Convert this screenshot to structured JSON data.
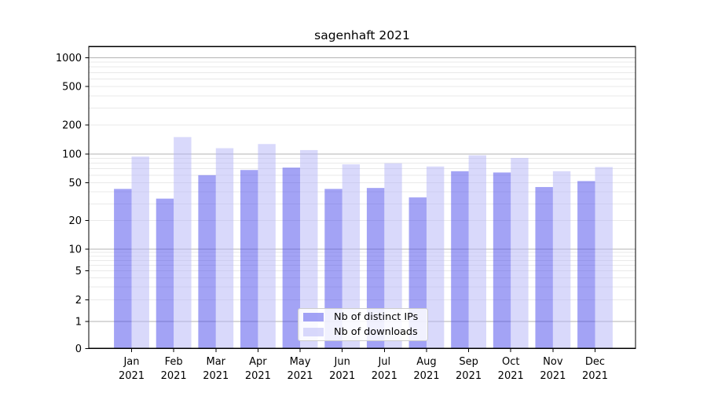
{
  "title": "sagenhaft 2021",
  "chart_data": {
    "type": "bar",
    "title": "sagenhaft 2021",
    "x": {
      "months": [
        "Jan",
        "Feb",
        "Mar",
        "Apr",
        "May",
        "Jun",
        "Jul",
        "Aug",
        "Sep",
        "Oct",
        "Nov",
        "Dec"
      ],
      "year": "2021"
    },
    "categories": [
      "Jan 2021",
      "Feb 2021",
      "Mar 2021",
      "Apr 2021",
      "May 2021",
      "Jun 2021",
      "Jul 2021",
      "Aug 2021",
      "Sep 2021",
      "Oct 2021",
      "Nov 2021",
      "Dec 2021"
    ],
    "series": [
      {
        "name": "Nb of distinct IPs",
        "fill": "rgba(71,71,235,0.5)",
        "solid_equivalent": "#a3a3f5",
        "values": [
          43,
          34,
          60,
          68,
          72,
          43,
          44,
          35,
          66,
          64,
          45,
          52
        ]
      },
      {
        "name": "Nb of downloads",
        "fill": "rgba(179,179,247,0.5)",
        "solid_equivalent": "#d9d9fb",
        "values": [
          94,
          150,
          115,
          127,
          110,
          78,
          80,
          74,
          97,
          91,
          66,
          73
        ]
      }
    ],
    "y_axis": {
      "scale": "symlog",
      "ticks": [
        0,
        1,
        2,
        5,
        10,
        20,
        50,
        100,
        200,
        500,
        1000
      ],
      "ylim": [
        0,
        1340
      ]
    },
    "grid": {
      "on": true,
      "major_color": "#b3b3b3",
      "minor_color": "#e9e9e9"
    },
    "legend": {
      "position": "lower center",
      "entries": [
        "Nb of distinct IPs",
        "Nb of downloads"
      ]
    },
    "colors": {
      "spine": "#000000",
      "text": "#000000",
      "background": "#ffffff"
    }
  }
}
